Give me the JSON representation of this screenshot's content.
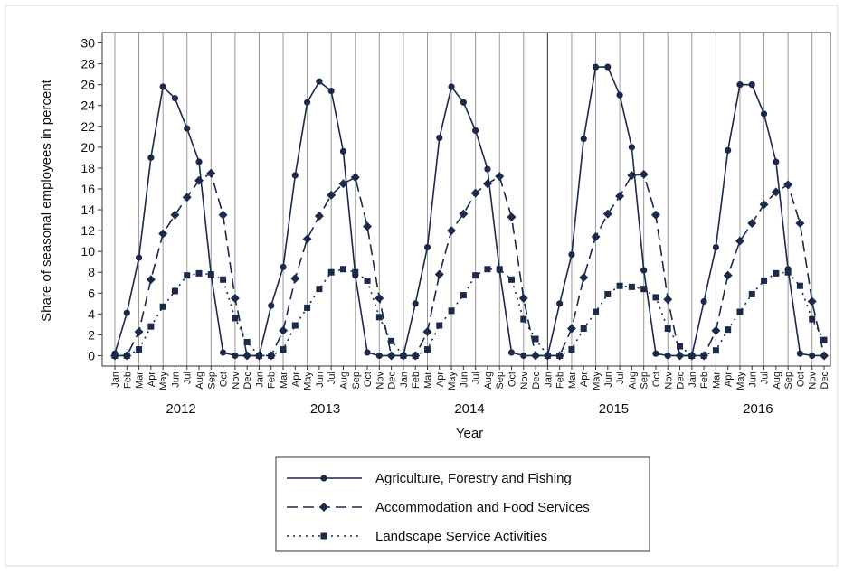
{
  "chart_data": {
    "type": "line",
    "y_label": "Share of seasonal employees in percent",
    "x_label": "Year",
    "categories": [
      "Jan",
      "Feb",
      "Mar",
      "Apr",
      "May",
      "Jun",
      "Jul",
      "Aug",
      "Sep",
      "Oct",
      "Nov",
      "Dec",
      "Jan",
      "Feb",
      "Mar",
      "Apr",
      "May",
      "Jun",
      "Jul",
      "Aug",
      "Sep",
      "Oct",
      "Nov",
      "Dec",
      "Jan",
      "Feb",
      "Mar",
      "Apr",
      "May",
      "Jun",
      "Jul",
      "Aug",
      "Sep",
      "Oct",
      "Nov",
      "Dec",
      "Jan",
      "Feb",
      "Mar",
      "Apr",
      "May",
      "Jun",
      "Jul",
      "Aug",
      "Sep",
      "Oct",
      "Nov",
      "Dec",
      "Jan",
      "Feb",
      "Mar",
      "Apr",
      "May",
      "Jun",
      "Jul",
      "Aug",
      "Sep",
      "Oct",
      "Nov",
      "Dec"
    ],
    "years": [
      "2012",
      "2013",
      "2014",
      "2015",
      "2016"
    ],
    "series": [
      {
        "name": "Agriculture, Forestry and Fishing",
        "color": "#1b2a4a",
        "marker": "circle",
        "dash": "solid",
        "values": [
          0.2,
          4.1,
          9.4,
          19,
          25.8,
          24.7,
          21.8,
          18.6,
          7.8,
          0.3,
          0,
          0,
          0,
          4.8,
          8.5,
          17.3,
          24.3,
          26.3,
          25.4,
          19.6,
          7.7,
          0.3,
          0,
          0,
          0,
          5.0,
          10.4,
          20.9,
          25.8,
          24.3,
          21.6,
          17.9,
          8.2,
          0.3,
          0,
          0,
          0,
          5.0,
          9.7,
          20.8,
          27.7,
          27.7,
          25.0,
          20.0,
          8.2,
          0.2,
          0,
          0,
          0,
          5.2,
          10.4,
          19.7,
          26.0,
          26.0,
          23.2,
          18.6,
          8.3,
          0.2,
          0,
          0
        ]
      },
      {
        "name": "Accommodation and Food Services",
        "color": "#1b2a4a",
        "marker": "diamond",
        "dash": "dashed",
        "values": [
          0,
          0,
          2.3,
          7.3,
          11.7,
          13.5,
          15.2,
          16.8,
          17.5,
          13.5,
          5.5,
          0,
          0,
          0,
          2.4,
          7.4,
          11.2,
          13.4,
          15.4,
          16.5,
          17.1,
          12.4,
          5.5,
          0,
          0,
          0,
          2.3,
          7.8,
          12.0,
          13.6,
          15.6,
          16.5,
          17.2,
          13.3,
          5.5,
          0,
          0,
          0,
          2.6,
          7.5,
          11.4,
          13.6,
          15.3,
          17.3,
          17.4,
          13.5,
          5.4,
          0,
          0,
          0,
          2.4,
          7.7,
          11.0,
          12.7,
          14.5,
          15.7,
          16.4,
          12.7,
          5.2,
          0
        ]
      },
      {
        "name": "Landscape Service Activities",
        "color": "#1b2a4a",
        "marker": "square",
        "dash": "dotted",
        "values": [
          0,
          0,
          0.6,
          2.8,
          4.7,
          6.2,
          7.7,
          7.9,
          7.8,
          7.3,
          3.6,
          1.3,
          0,
          0,
          0.6,
          2.9,
          4.6,
          6.4,
          8.0,
          8.3,
          8.0,
          7.2,
          3.7,
          1.4,
          0,
          0,
          0.6,
          2.9,
          4.3,
          5.8,
          7.7,
          8.3,
          8.3,
          7.3,
          3.5,
          1.6,
          0,
          0,
          0.6,
          2.6,
          4.2,
          5.9,
          6.7,
          6.6,
          6.4,
          5.6,
          2.6,
          0.9,
          0,
          0,
          0.5,
          2.5,
          4.2,
          5.9,
          7.2,
          7.9,
          8.0,
          6.7,
          3.5,
          1.5
        ]
      }
    ],
    "ylim": [
      -1,
      31
    ],
    "yticks": [
      0,
      2,
      4,
      6,
      8,
      10,
      12,
      14,
      16,
      18,
      20,
      22,
      24,
      26,
      28,
      30
    ],
    "grid": true
  }
}
